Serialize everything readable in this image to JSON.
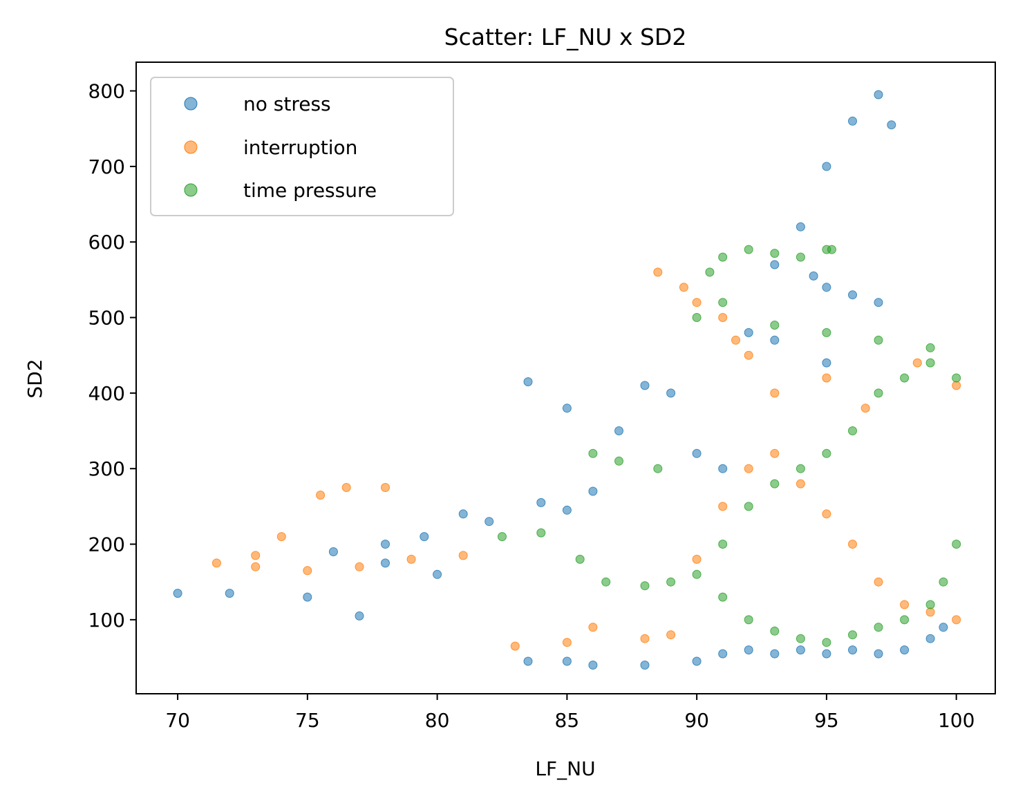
{
  "chart_data": {
    "type": "scatter",
    "title": "Scatter: LF_NU x SD2",
    "xlabel": "LF_NU",
    "ylabel": "SD2",
    "xlim": [
      68.4,
      101.5
    ],
    "ylim": [
      2,
      838
    ],
    "xticks": [
      70,
      75,
      80,
      85,
      90,
      95,
      100
    ],
    "yticks": [
      100,
      200,
      300,
      400,
      500,
      600,
      700,
      800
    ],
    "grid": false,
    "legend_position": "upper-left",
    "series": [
      {
        "name": "no stress",
        "color": "#1f77b4",
        "x": [
          70.0,
          72.0,
          75.0,
          77.0,
          76.0,
          78.0,
          79.5,
          81.0,
          78.0,
          80.0,
          82.0,
          84.0,
          85.0,
          86.0,
          88.0,
          89.0,
          83.5,
          85.0,
          87.0,
          83.5,
          85.0,
          86.0,
          88.0,
          90.0,
          91.0,
          92.0,
          93.0,
          94.0,
          95.0,
          96.0,
          97.0,
          98.0,
          99.0,
          99.5,
          96.0,
          95.0,
          94.5,
          93.0,
          94.0,
          95.0,
          96.0,
          97.0,
          97.5,
          93.0,
          92.0,
          90.0,
          91.0,
          95.0,
          97.0
        ],
        "y": [
          135,
          135,
          130,
          105,
          190,
          200,
          210,
          240,
          175,
          160,
          230,
          255,
          245,
          270,
          410,
          400,
          415,
          380,
          350,
          45,
          45,
          40,
          40,
          45,
          55,
          60,
          55,
          60,
          55,
          60,
          55,
          60,
          75,
          90,
          530,
          540,
          555,
          570,
          620,
          700,
          760,
          795,
          755,
          470,
          480,
          320,
          300,
          440,
          520
        ]
      },
      {
        "name": "interruption",
        "color": "#ff7f0e",
        "x": [
          71.5,
          73.0,
          74.0,
          75.5,
          76.5,
          78.0,
          73.0,
          75.0,
          77.0,
          79.0,
          81.0,
          83.0,
          85.0,
          86.0,
          88.0,
          89.0,
          90.0,
          91.0,
          92.0,
          93.0,
          94.0,
          95.0,
          96.0,
          97.0,
          98.0,
          99.0,
          100.0,
          88.5,
          89.5,
          90.0,
          91.0,
          91.5,
          92.0,
          93.0,
          95.0,
          96.5,
          98.5,
          100.0
        ],
        "y": [
          175,
          185,
          210,
          265,
          275,
          275,
          170,
          165,
          170,
          180,
          185,
          65,
          70,
          90,
          75,
          80,
          180,
          250,
          300,
          320,
          280,
          240,
          200,
          150,
          120,
          110,
          100,
          560,
          540,
          520,
          500,
          470,
          450,
          400,
          420,
          380,
          440,
          410
        ]
      },
      {
        "name": "time pressure",
        "color": "#2ca02c",
        "x": [
          82.5,
          84.0,
          85.5,
          86.5,
          88.0,
          89.0,
          90.0,
          91.0,
          92.0,
          93.0,
          94.0,
          95.0,
          96.0,
          97.0,
          98.0,
          99.0,
          100.0,
          100.0,
          99.5,
          99.0,
          98.0,
          97.0,
          96.0,
          95.0,
          94.0,
          93.0,
          92.0,
          91.0,
          90.5,
          91.0,
          92.0,
          93.0,
          94.0,
          95.0,
          95.2,
          90.0,
          91.0,
          93.0,
          95.0,
          97.0,
          99.0,
          86.0,
          87.0,
          88.5
        ],
        "y": [
          210,
          215,
          180,
          150,
          145,
          150,
          160,
          200,
          250,
          280,
          300,
          320,
          350,
          400,
          420,
          440,
          420,
          200,
          150,
          120,
          100,
          90,
          80,
          70,
          75,
          85,
          100,
          130,
          560,
          580,
          590,
          585,
          580,
          590,
          590,
          500,
          520,
          490,
          480,
          470,
          460,
          320,
          310,
          300
        ]
      }
    ]
  }
}
